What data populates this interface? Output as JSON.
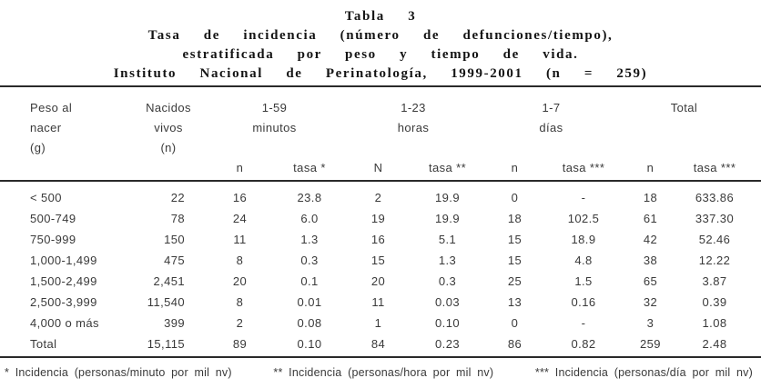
{
  "title": {
    "line1": "Tabla 3",
    "line2": "Tasa de incidencia (número de defunciones/tiempo),",
    "line3": "estratificada por peso y tiempo de vida.",
    "line4": "Instituto Nacional de Perinatología, 1999-2001 (n = 259)"
  },
  "table": {
    "col_groups": [
      {
        "line1": "Peso al",
        "line2": "nacer",
        "line3": "(g)"
      },
      {
        "line1": "Nacidos",
        "line2": "vivos",
        "line3": "(n)"
      },
      {
        "line1": "1-59",
        "line2": "minutos"
      },
      {
        "line1": "1-23",
        "line2": "horas"
      },
      {
        "line1": "1-7",
        "line2": "días"
      },
      {
        "line1": "Total"
      }
    ],
    "sub_headers": [
      "n",
      "tasa *",
      "N",
      "tasa **",
      "n",
      "tasa ***",
      "n",
      "tasa ***"
    ],
    "rows": [
      [
        "< 500",
        "22",
        "16",
        "23.8",
        "2",
        "19.9",
        "0",
        "-",
        "18",
        "633.86"
      ],
      [
        "500-749",
        "78",
        "24",
        "6.0",
        "19",
        "19.9",
        "18",
        "102.5",
        "61",
        "337.30"
      ],
      [
        "750-999",
        "150",
        "11",
        "1.3",
        "16",
        "5.1",
        "15",
        "18.9",
        "42",
        "52.46"
      ],
      [
        "1,000-1,499",
        "475",
        "8",
        "0.3",
        "15",
        "1.3",
        "15",
        "4.8",
        "38",
        "12.22"
      ],
      [
        "1,500-2,499",
        "2,451",
        "20",
        "0.1",
        "20",
        "0.3",
        "25",
        "1.5",
        "65",
        "3.87"
      ],
      [
        "2,500-3,999",
        "11,540",
        "8",
        "0.01",
        "11",
        "0.03",
        "13",
        "0.16",
        "32",
        "0.39"
      ],
      [
        "4,000 o más",
        "399",
        "2",
        "0.08",
        "1",
        "0.10",
        "0",
        "-",
        "3",
        "1.08"
      ],
      [
        "Total",
        "15,115",
        "89",
        "0.10",
        "84",
        "0.23",
        "86",
        "0.82",
        "259",
        "2.48"
      ]
    ]
  },
  "footnotes": [
    "* Incidencia (personas/minuto por mil nv)",
    "** Incidencia (personas/hora por mil nv)",
    "*** Incidencia (personas/día por mil nv)"
  ]
}
